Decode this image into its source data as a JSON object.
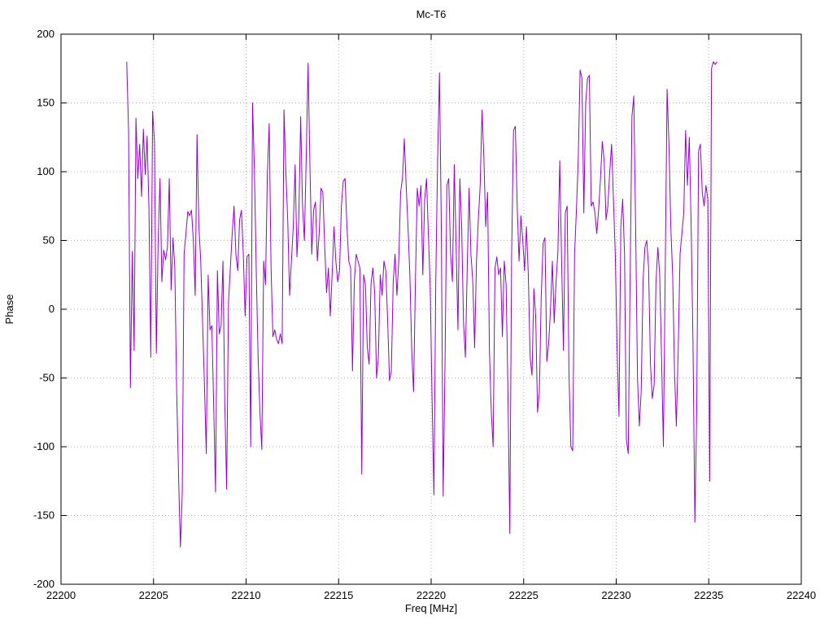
{
  "chart_data": {
    "type": "line",
    "title": "Mc-T6",
    "xlabel": "Freq [MHz]",
    "ylabel": "Phase",
    "xlim": [
      22200,
      22240
    ],
    "ylim": [
      -200,
      200
    ],
    "x_tick_step": 5,
    "y_tick_step": 50,
    "grid": true,
    "legend_position": "none",
    "line_color": "#9400d3",
    "grid_color": "#b0b0b0",
    "x_start": 22203.55,
    "x_step": 0.1,
    "y": [
      180,
      130,
      -57,
      42,
      -30,
      139,
      95,
      120,
      82,
      131,
      98,
      126,
      75,
      -35,
      144,
      122,
      -32,
      50,
      95,
      20,
      43,
      36,
      45,
      95,
      14,
      52,
      30,
      -60,
      -120,
      -173,
      -135,
      40,
      55,
      71,
      68,
      72,
      50,
      10,
      127,
      60,
      35,
      -10,
      -55,
      -105,
      25,
      -15,
      -12,
      -70,
      -133,
      28,
      -18,
      -12,
      35,
      -68,
      -131,
      5,
      30,
      55,
      75,
      40,
      28,
      65,
      72,
      40,
      -5,
      38,
      40,
      -100,
      150,
      102,
      28,
      -35,
      -75,
      -102,
      35,
      18,
      98,
      135,
      30,
      -20,
      -15,
      -22,
      -25,
      -18,
      -25,
      145,
      100,
      65,
      10,
      35,
      60,
      105,
      38,
      66,
      140,
      75,
      50,
      110,
      179,
      105,
      40,
      72,
      78,
      35,
      55,
      88,
      85,
      45,
      12,
      30,
      -5,
      25,
      60,
      35,
      20,
      28,
      75,
      93,
      95,
      60,
      35,
      30,
      -45,
      20,
      40,
      35,
      30,
      -120,
      25,
      18,
      -28,
      -40,
      18,
      30,
      12,
      -50,
      -35,
      25,
      10,
      35,
      28,
      -8,
      -52,
      -45,
      20,
      40,
      10,
      35,
      85,
      95,
      124,
      90,
      60,
      25,
      -30,
      -60,
      20,
      88,
      75,
      90,
      25,
      80,
      95,
      55,
      15,
      -65,
      -135,
      20,
      110,
      172,
      60,
      -136,
      -40,
      90,
      95,
      40,
      20,
      105,
      45,
      -15,
      95,
      60,
      -10,
      -35,
      30,
      88,
      40,
      20,
      -28,
      35,
      65,
      90,
      145,
      110,
      60,
      85,
      -30,
      -75,
      -100,
      30,
      38,
      25,
      30,
      -20,
      35,
      18,
      -60,
      -163,
      40,
      130,
      133,
      75,
      35,
      68,
      50,
      28,
      60,
      25,
      -35,
      -48,
      15,
      -5,
      -75,
      -60,
      10,
      48,
      52,
      -38,
      -25,
      0,
      35,
      -10,
      20,
      42,
      108,
      35,
      -30,
      70,
      75,
      -48,
      -100,
      -103,
      40,
      72,
      110,
      174,
      168,
      70,
      150,
      168,
      170,
      75,
      78,
      70,
      55,
      72,
      95,
      122,
      108,
      65,
      75,
      100,
      120,
      80,
      40,
      -30,
      -78,
      60,
      80,
      40,
      -95,
      -105,
      20,
      140,
      155,
      60,
      -50,
      -85,
      -60,
      20,
      45,
      50,
      30,
      -40,
      -65,
      -55,
      20,
      45,
      25,
      -35,
      -100,
      30,
      160,
      120,
      60,
      25,
      -45,
      -85,
      -30,
      40,
      55,
      70,
      130,
      90,
      125,
      60,
      -25,
      -155,
      -75,
      115,
      120,
      85,
      75,
      90,
      80,
      -125,
      175,
      180,
      178,
      180
    ]
  }
}
